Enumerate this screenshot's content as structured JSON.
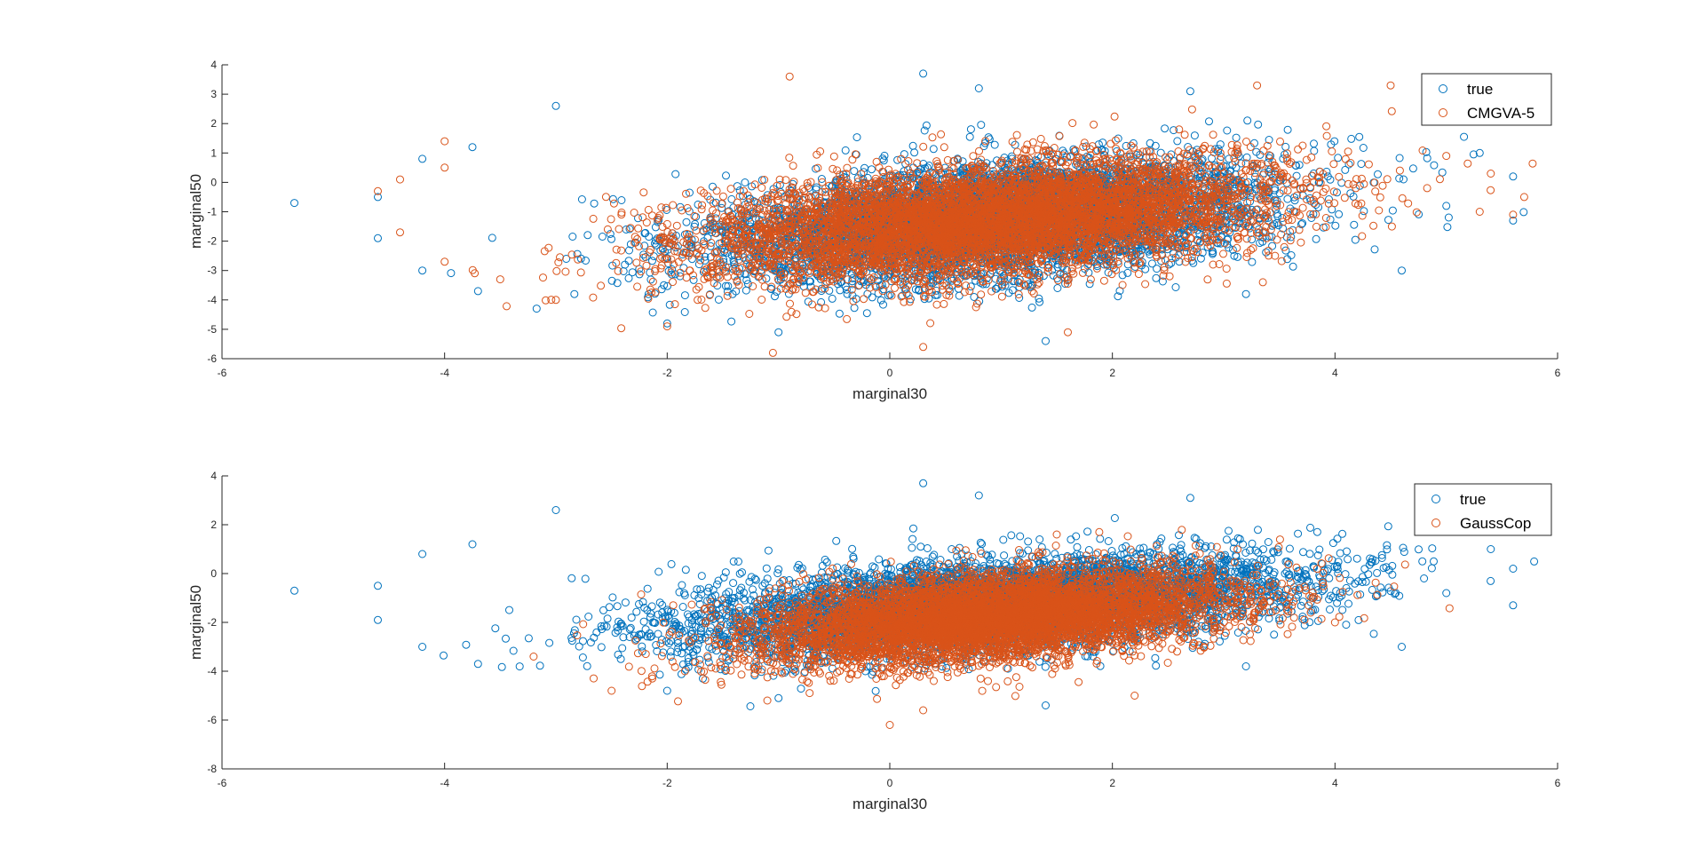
{
  "colors": {
    "true": "#0072BD",
    "model": "#D95319",
    "axis": "#262626",
    "background": "#ffffff"
  },
  "chart_data": [
    {
      "type": "scatter",
      "marker": "open-circle",
      "xlabel": "marginal30",
      "ylabel": "marginal50",
      "xlim": [
        -6,
        6
      ],
      "ylim": [
        -6,
        4
      ],
      "xticks": [
        "-6",
        "-4",
        "-2",
        "0",
        "2",
        "4",
        "6"
      ],
      "yticks": [
        "-6",
        "-5",
        "-4",
        "-3",
        "-2",
        "-1",
        "0",
        "1",
        "2",
        "3",
        "4"
      ],
      "legend_position": "top-right",
      "series": [
        {
          "name": "true",
          "color": "#0072BD",
          "distribution": {
            "mean_x": 0.9,
            "mean_y": -1.3,
            "sd_x": 1.25,
            "sd_y": 1.0,
            "corr": 0.4,
            "n": 6000
          },
          "points": [
            [
              -5.35,
              -0.7
            ],
            [
              -4.6,
              -0.5
            ],
            [
              -4.6,
              -1.9
            ],
            [
              -4.2,
              0.8
            ],
            [
              -4.2,
              -3.0
            ],
            [
              -3.7,
              -3.7
            ],
            [
              -3.75,
              1.2
            ],
            [
              -1.0,
              -5.1
            ],
            [
              0.3,
              3.7
            ],
            [
              0.8,
              3.2
            ],
            [
              5.6,
              0.2
            ],
            [
              5.6,
              -1.3
            ],
            [
              5.0,
              -0.8
            ],
            [
              5.3,
              1.0
            ],
            [
              4.6,
              -3.0
            ],
            [
              1.4,
              -5.4
            ],
            [
              -2.0,
              -4.8
            ],
            [
              3.2,
              -3.8
            ],
            [
              2.7,
              3.1
            ],
            [
              -3.0,
              2.6
            ]
          ]
        },
        {
          "name": "CMGVA-5",
          "color": "#D95319",
          "distribution": {
            "mean_x": 0.9,
            "mean_y": -1.3,
            "sd_x": 1.25,
            "sd_y": 1.0,
            "corr": 0.4,
            "n": 6000
          },
          "points": [
            [
              -4.6,
              -0.3
            ],
            [
              -4.4,
              0.1
            ],
            [
              -4.4,
              -1.7
            ],
            [
              -4.0,
              1.4
            ],
            [
              -4.0,
              -2.7
            ],
            [
              -1.05,
              -5.8
            ],
            [
              0.3,
              -5.6
            ],
            [
              -0.9,
              3.6
            ],
            [
              3.3,
              3.3
            ],
            [
              4.5,
              3.3
            ],
            [
              5.0,
              0.9
            ],
            [
              5.4,
              0.3
            ],
            [
              5.7,
              -0.5
            ],
            [
              5.6,
              -1.1
            ],
            [
              5.3,
              -1.0
            ],
            [
              -3.0,
              -4.0
            ],
            [
              -2.0,
              -4.9
            ],
            [
              1.6,
              -5.1
            ],
            [
              -4.0,
              0.5
            ],
            [
              -3.5,
              -3.3
            ]
          ]
        }
      ]
    },
    {
      "type": "scatter",
      "marker": "open-circle",
      "xlabel": "marginal30",
      "ylabel": "marginal50",
      "xlim": [
        -6,
        6
      ],
      "ylim": [
        -8,
        4
      ],
      "xticks": [
        "-6",
        "-4",
        "-2",
        "0",
        "2",
        "4",
        "6"
      ],
      "yticks": [
        "-8",
        "-6",
        "-4",
        "-2",
        "0",
        "2",
        "4"
      ],
      "legend_position": "top-right",
      "series": [
        {
          "name": "true",
          "color": "#0072BD",
          "distribution": {
            "mean_x": 0.9,
            "mean_y": -1.3,
            "sd_x": 1.35,
            "sd_y": 1.0,
            "corr": 0.45,
            "n": 6000
          },
          "points": [
            [
              -5.35,
              -0.7
            ],
            [
              -4.6,
              -0.5
            ],
            [
              -4.6,
              -1.9
            ],
            [
              -4.2,
              0.8
            ],
            [
              -4.2,
              -3.0
            ],
            [
              -3.7,
              -3.7
            ],
            [
              -3.75,
              1.2
            ],
            [
              -1.0,
              -5.1
            ],
            [
              0.3,
              3.7
            ],
            [
              0.8,
              3.2
            ],
            [
              5.6,
              0.2
            ],
            [
              5.6,
              -1.3
            ],
            [
              5.0,
              -0.8
            ],
            [
              5.4,
              1.0
            ],
            [
              4.6,
              -3.0
            ],
            [
              1.4,
              -5.4
            ],
            [
              -2.0,
              -4.8
            ],
            [
              3.2,
              -3.8
            ],
            [
              2.7,
              3.1
            ],
            [
              -3.0,
              2.6
            ]
          ]
        },
        {
          "name": "GaussCop",
          "color": "#D95319",
          "distribution": {
            "mean_x": 0.9,
            "mean_y": -1.8,
            "sd_x": 1.05,
            "sd_y": 0.95,
            "corr": 0.4,
            "n": 6000
          },
          "points": [
            [
              0.0,
              -6.2
            ],
            [
              0.3,
              -5.6
            ],
            [
              -1.1,
              -5.2
            ],
            [
              -2.5,
              -4.8
            ],
            [
              -3.2,
              -3.4
            ],
            [
              4.0,
              -2.0
            ],
            [
              3.8,
              -1.0
            ],
            [
              -1.2,
              -3.8
            ],
            [
              2.2,
              -5.0
            ],
            [
              1.5,
              1.6
            ]
          ]
        }
      ]
    }
  ]
}
